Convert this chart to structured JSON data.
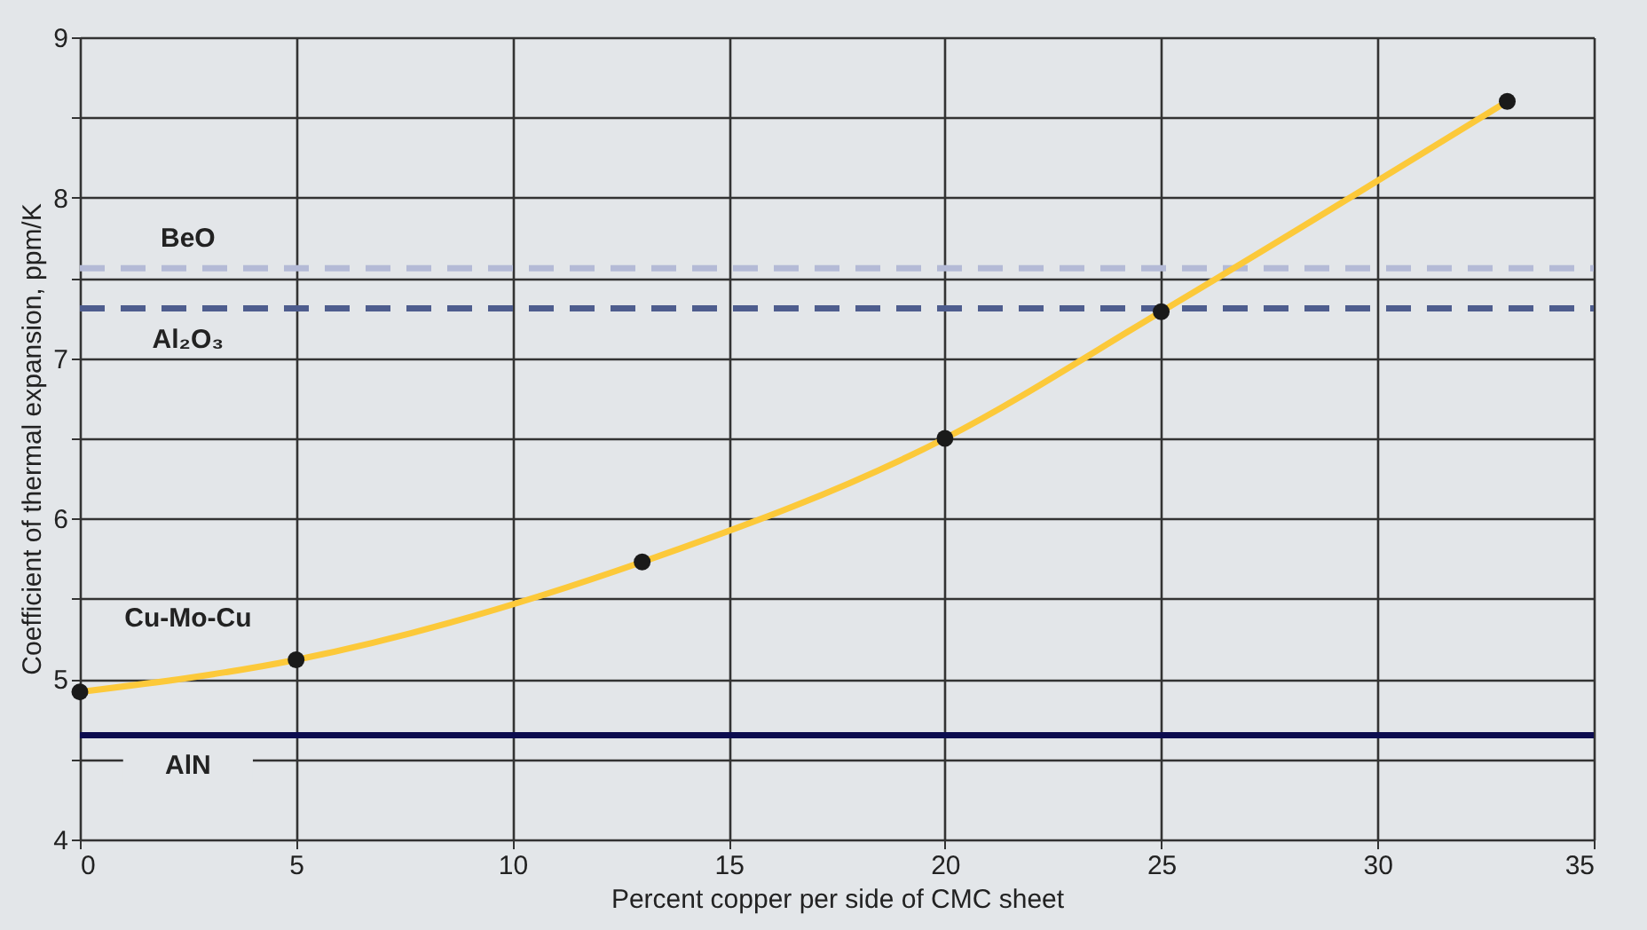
{
  "chart_data": {
    "type": "line",
    "xlabel": "Percent copper per side of CMC sheet",
    "ylabel": "Coefficient of thermal expansion, ppm/K",
    "x": [
      0,
      5,
      13,
      20,
      25,
      33
    ],
    "series": [
      {
        "name": "Cu-Mo-Cu",
        "color": "#fcc93a",
        "values": [
          4.92,
          5.12,
          5.73,
          6.5,
          7.29,
          8.6
        ]
      },
      {
        "type": "scatter",
        "color": "#1a1a1a",
        "marker": "circle",
        "values": [
          4.92,
          5.12,
          5.73,
          6.5,
          7.29,
          8.6
        ]
      }
    ],
    "ref_lines": [
      {
        "axis": "y",
        "value": 7.56,
        "label": "BeO",
        "color": "#b4bad6",
        "line_style": "dashed"
      },
      {
        "axis": "y",
        "value": 7.31,
        "label": "Al₂O₃",
        "color": "#4e5d8e",
        "line_style": "dashed"
      },
      {
        "axis": "y",
        "value": 4.65,
        "label": "AlN",
        "color": "#0d0d4f",
        "line_style": "solid"
      }
    ],
    "xlim": [
      0,
      35
    ],
    "xticks": [
      0,
      5,
      10,
      15,
      20,
      25,
      30,
      35
    ],
    "ylim": [
      4,
      9
    ],
    "yticks": [
      4,
      {
        "value": 4.5,
        "label": null
      },
      5,
      {
        "value": 5.5,
        "label": null
      },
      6,
      {
        "value": 6.5,
        "label": null
      },
      7,
      {
        "value": 7.5,
        "label": null
      },
      8,
      {
        "value": 8.5,
        "label": null
      },
      9
    ],
    "grid": true
  }
}
